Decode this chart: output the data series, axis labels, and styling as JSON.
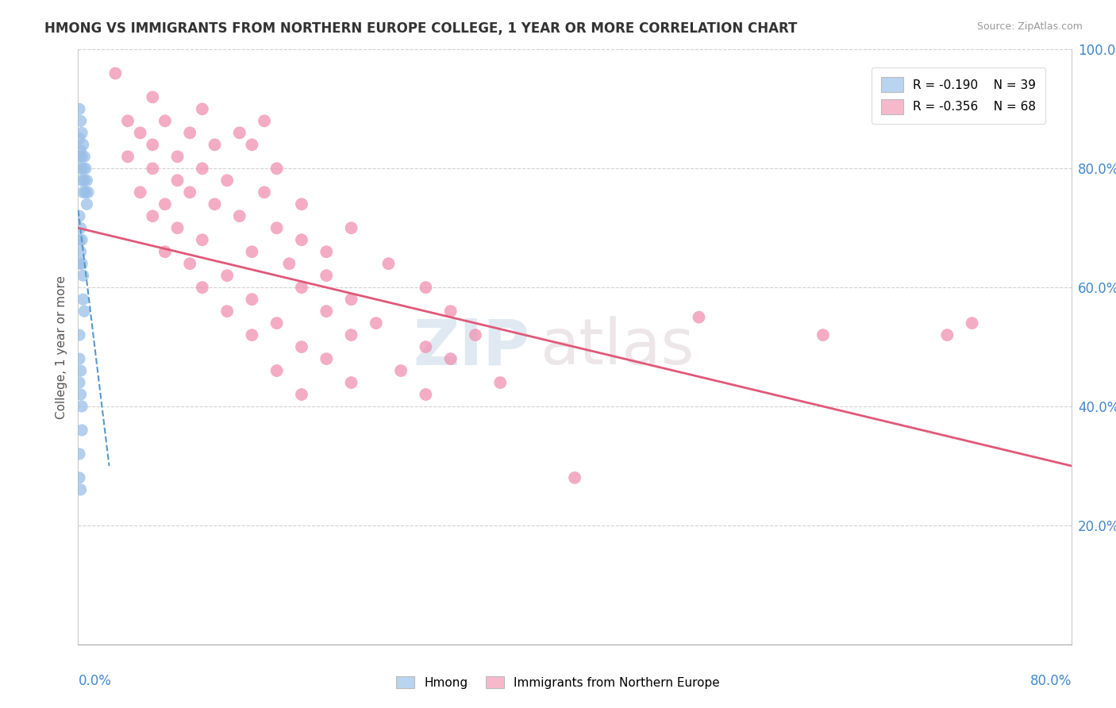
{
  "title": "HMONG VS IMMIGRANTS FROM NORTHERN EUROPE COLLEGE, 1 YEAR OR MORE CORRELATION CHART",
  "source_text": "Source: ZipAtlas.com",
  "ylabel": "College, 1 year or more",
  "watermark_zip": "ZIP",
  "watermark_atlas": "atlas",
  "xlim": [
    0.0,
    0.8
  ],
  "ylim": [
    0.0,
    1.0
  ],
  "background_color": "#ffffff",
  "hmong_color": "#99bfe8",
  "northern_europe_color": "#f090b0",
  "hmong_line_color": "#5599cc",
  "ne_line_color": "#e05878",
  "legend_patch_hmong": "#b8d4f0",
  "legend_patch_ne": "#f8b8cc",
  "ytick_vals": [
    0.2,
    0.4,
    0.6,
    0.8,
    1.0
  ],
  "ytick_labels": [
    "20.0%",
    "40.0%",
    "60.0%",
    "80.0%",
    "100.0%"
  ],
  "legend_r1": "R = -0.190",
  "legend_n1": "N = 39",
  "legend_r2": "R = -0.356",
  "legend_n2": "N = 68",
  "hmong_scatter": [
    [
      0.001,
      0.9
    ],
    [
      0.001,
      0.85
    ],
    [
      0.001,
      0.82
    ],
    [
      0.002,
      0.88
    ],
    [
      0.002,
      0.83
    ],
    [
      0.002,
      0.8
    ],
    [
      0.003,
      0.86
    ],
    [
      0.003,
      0.82
    ],
    [
      0.003,
      0.78
    ],
    [
      0.004,
      0.84
    ],
    [
      0.004,
      0.8
    ],
    [
      0.004,
      0.76
    ],
    [
      0.005,
      0.82
    ],
    [
      0.005,
      0.78
    ],
    [
      0.006,
      0.8
    ],
    [
      0.006,
      0.76
    ],
    [
      0.007,
      0.78
    ],
    [
      0.007,
      0.74
    ],
    [
      0.008,
      0.76
    ],
    [
      0.001,
      0.72
    ],
    [
      0.001,
      0.68
    ],
    [
      0.001,
      0.64
    ],
    [
      0.002,
      0.7
    ],
    [
      0.002,
      0.66
    ],
    [
      0.003,
      0.68
    ],
    [
      0.003,
      0.64
    ],
    [
      0.004,
      0.62
    ],
    [
      0.004,
      0.58
    ],
    [
      0.005,
      0.56
    ],
    [
      0.001,
      0.52
    ],
    [
      0.001,
      0.48
    ],
    [
      0.001,
      0.44
    ],
    [
      0.002,
      0.46
    ],
    [
      0.002,
      0.42
    ],
    [
      0.003,
      0.4
    ],
    [
      0.003,
      0.36
    ],
    [
      0.001,
      0.32
    ],
    [
      0.001,
      0.28
    ],
    [
      0.002,
      0.26
    ]
  ],
  "northern_europe_scatter": [
    [
      0.03,
      0.96
    ],
    [
      0.06,
      0.92
    ],
    [
      0.1,
      0.9
    ],
    [
      0.04,
      0.88
    ],
    [
      0.07,
      0.88
    ],
    [
      0.15,
      0.88
    ],
    [
      0.05,
      0.86
    ],
    [
      0.09,
      0.86
    ],
    [
      0.13,
      0.86
    ],
    [
      0.06,
      0.84
    ],
    [
      0.11,
      0.84
    ],
    [
      0.04,
      0.82
    ],
    [
      0.08,
      0.82
    ],
    [
      0.14,
      0.84
    ],
    [
      0.06,
      0.8
    ],
    [
      0.1,
      0.8
    ],
    [
      0.16,
      0.8
    ],
    [
      0.08,
      0.78
    ],
    [
      0.12,
      0.78
    ],
    [
      0.05,
      0.76
    ],
    [
      0.09,
      0.76
    ],
    [
      0.15,
      0.76
    ],
    [
      0.07,
      0.74
    ],
    [
      0.11,
      0.74
    ],
    [
      0.18,
      0.74
    ],
    [
      0.06,
      0.72
    ],
    [
      0.13,
      0.72
    ],
    [
      0.08,
      0.7
    ],
    [
      0.16,
      0.7
    ],
    [
      0.22,
      0.7
    ],
    [
      0.1,
      0.68
    ],
    [
      0.18,
      0.68
    ],
    [
      0.07,
      0.66
    ],
    [
      0.14,
      0.66
    ],
    [
      0.2,
      0.66
    ],
    [
      0.09,
      0.64
    ],
    [
      0.17,
      0.64
    ],
    [
      0.25,
      0.64
    ],
    [
      0.12,
      0.62
    ],
    [
      0.2,
      0.62
    ],
    [
      0.1,
      0.6
    ],
    [
      0.18,
      0.6
    ],
    [
      0.28,
      0.6
    ],
    [
      0.14,
      0.58
    ],
    [
      0.22,
      0.58
    ],
    [
      0.12,
      0.56
    ],
    [
      0.2,
      0.56
    ],
    [
      0.3,
      0.56
    ],
    [
      0.16,
      0.54
    ],
    [
      0.24,
      0.54
    ],
    [
      0.14,
      0.52
    ],
    [
      0.22,
      0.52
    ],
    [
      0.32,
      0.52
    ],
    [
      0.18,
      0.5
    ],
    [
      0.28,
      0.5
    ],
    [
      0.2,
      0.48
    ],
    [
      0.3,
      0.48
    ],
    [
      0.16,
      0.46
    ],
    [
      0.26,
      0.46
    ],
    [
      0.22,
      0.44
    ],
    [
      0.34,
      0.44
    ],
    [
      0.18,
      0.42
    ],
    [
      0.28,
      0.42
    ],
    [
      0.5,
      0.55
    ],
    [
      0.6,
      0.52
    ],
    [
      0.7,
      0.52
    ],
    [
      0.72,
      0.54
    ],
    [
      0.4,
      0.28
    ]
  ],
  "hmong_trendline_x": [
    0.0,
    0.025
  ],
  "hmong_trendline_y": [
    0.73,
    0.3
  ],
  "ne_trendline_x": [
    0.0,
    0.8
  ],
  "ne_trendline_y": [
    0.7,
    0.3
  ]
}
